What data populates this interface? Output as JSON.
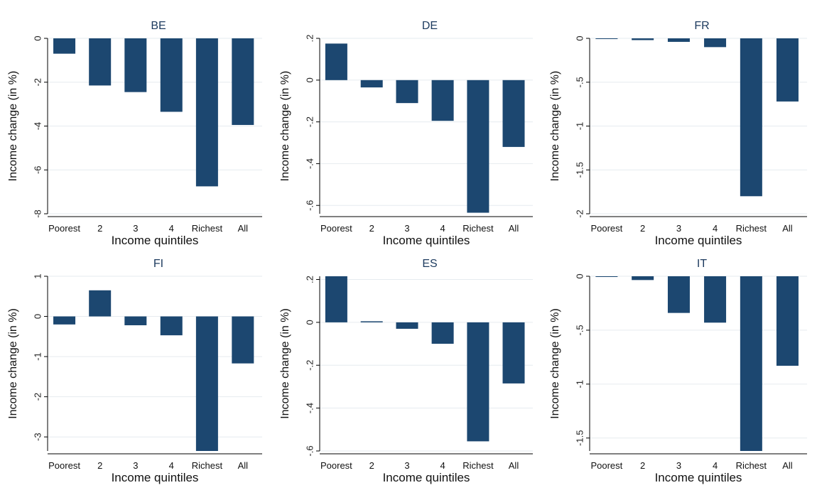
{
  "chart_data": [
    {
      "type": "bar",
      "title": "BE",
      "xlabel": "Income quintiles",
      "ylabel": "Income change (in %)",
      "categories": [
        "Poorest",
        "2",
        "3",
        "4",
        "Richest",
        "All"
      ],
      "values": [
        -0.7,
        -2.15,
        -2.45,
        -3.35,
        -6.75,
        -3.95
      ],
      "ylim": [
        -8,
        0
      ],
      "yticks": [
        0,
        -2,
        -4,
        -6,
        -8
      ],
      "ytick_labels": [
        "0",
        "-2",
        "-4",
        "-6",
        "-8"
      ]
    },
    {
      "type": "bar",
      "title": "DE",
      "xlabel": "Income quintiles",
      "ylabel": "Income change (in %)",
      "categories": [
        "Poorest",
        "2",
        "3",
        "4",
        "Richest",
        "All"
      ],
      "values": [
        0.175,
        -0.035,
        -0.11,
        -0.195,
        -0.635,
        -0.32
      ],
      "ylim": [
        -0.64,
        0.2
      ],
      "yticks": [
        0.2,
        0,
        -0.2,
        -0.4,
        -0.6
      ],
      "ytick_labels": [
        ".2",
        "0",
        "-.2",
        "-.4",
        "-.6"
      ]
    },
    {
      "type": "bar",
      "title": "FR",
      "xlabel": "Income quintiles",
      "ylabel": "Income change (in %)",
      "categories": [
        "Poorest",
        "2",
        "3",
        "4",
        "Richest",
        "All"
      ],
      "values": [
        0.0,
        -0.02,
        -0.04,
        -0.1,
        -1.8,
        -0.72
      ],
      "ylim": [
        -2,
        0
      ],
      "yticks": [
        0,
        -0.5,
        -1,
        -1.5,
        -2
      ],
      "ytick_labels": [
        "0",
        "-.5",
        "-1",
        "-1.5",
        "-2"
      ]
    },
    {
      "type": "bar",
      "title": "FI",
      "xlabel": "Income quintiles",
      "ylabel": "Income change (in %)",
      "categories": [
        "Poorest",
        "2",
        "3",
        "4",
        "Richest",
        "All"
      ],
      "values": [
        -0.2,
        0.65,
        -0.22,
        -0.47,
        -3.35,
        -1.17
      ],
      "ylim": [
        -3.35,
        1
      ],
      "yticks": [
        1,
        0,
        -1,
        -2,
        -3
      ],
      "ytick_labels": [
        "1",
        "0",
        "-1",
        "-2",
        "-3"
      ]
    },
    {
      "type": "bar",
      "title": "ES",
      "xlabel": "Income quintiles",
      "ylabel": "Income change (in %)",
      "categories": [
        "Poorest",
        "2",
        "3",
        "4",
        "Richest",
        "All"
      ],
      "values": [
        0.215,
        0.005,
        -0.03,
        -0.1,
        -0.555,
        -0.285
      ],
      "ylim": [
        -0.6,
        0.215
      ],
      "yticks": [
        0.2,
        0,
        -0.2,
        -0.4,
        -0.6
      ],
      "ytick_labels": [
        ".2",
        "0",
        "-.2",
        "-.4",
        "-.6"
      ]
    },
    {
      "type": "bar",
      "title": "IT",
      "xlabel": "Income quintiles",
      "ylabel": "Income change (in %)",
      "categories": [
        "Poorest",
        "2",
        "3",
        "4",
        "Richest",
        "All"
      ],
      "values": [
        -0.005,
        -0.035,
        -0.34,
        -0.43,
        -1.62,
        -0.83
      ],
      "ylim": [
        -1.62,
        0
      ],
      "yticks": [
        0,
        -0.5,
        -1,
        -1.5
      ],
      "ytick_labels": [
        "0",
        "-.5",
        "-1",
        "-1.5"
      ]
    }
  ],
  "colors": {
    "bar": "#1c4770",
    "title": "#1c3a5e",
    "grid": "#e6ebef",
    "axis": "#000000"
  }
}
